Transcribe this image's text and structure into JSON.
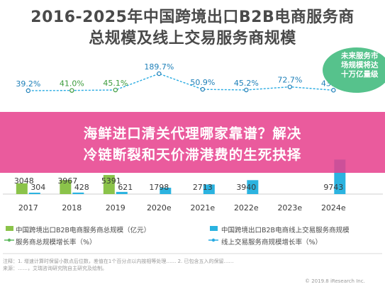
{
  "title_line1": "2016-2025年中国跨境出口B2B电商服务商",
  "title_line2": "总规模及线上交易服务商规模",
  "callout": [
    "未来服务市",
    "场规模将达",
    "十万亿量级"
  ],
  "banner_line1": "海鲜进口清关代理哪家靠谱？解决",
  "banner_line2": "冷链断裂和天价滞港费的生死抉择",
  "legend": {
    "total_scale": "中国跨境出口B2B电商服务商总规模（亿元）",
    "online_scale": "中国跨境出口B2B电商线上交易服务商规模",
    "total_growth": "服务商总规模增长率（%）",
    "online_growth": "线上交易服务商规模增长率（%）"
  },
  "footnote": [
    "注释：1. 增速计算时保留小数点后位数，差值在1个百分点以内按相等处理…… 2. 已包含五入的保留……",
    "来源：……，艾瑞咨询研究院自主研究及绘制。"
  ],
  "source_tag": "© 2019.8 iResearch Inc.",
  "colors": {
    "total_bar": "#8bc34a",
    "online_bar": "#2bb3e0",
    "total_line": "#5cb85c",
    "online_line": "#29abe2",
    "banner": "#e6408d",
    "callout": "#56c28c"
  },
  "chart_data": {
    "type": "bar",
    "categories": [
      "2017",
      "2018",
      "2019",
      "2020e",
      "2021e",
      "2022e",
      "2023e",
      "2024e"
    ],
    "series": [
      {
        "name": "中国跨境出口B2B电商服务商总规模（亿元）",
        "values": [
          3048,
          3967,
          5391,
          null,
          null,
          null,
          null,
          null
        ],
        "labels": [
          "3048",
          "3967",
          "5391",
          "",
          "",
          "",
          "",
          ""
        ]
      },
      {
        "name": "中国跨境出口B2B电商线上交易服务商规模",
        "values": [
          304,
          428,
          621,
          1798,
          2713,
          3940,
          null,
          9743
        ],
        "labels": [
          "304",
          "428",
          "621",
          "1798",
          "2713",
          "3940",
          "",
          "9743"
        ]
      },
      {
        "name": "服务商总规模增长率（%）",
        "values": [
          null,
          41.0,
          45.1,
          null,
          null,
          null,
          null,
          null
        ],
        "labels": [
          "",
          "41.0%",
          "45.1%",
          "",
          "",
          "",
          "",
          ""
        ]
      },
      {
        "name": "线上交易服务商规模增长率（%）",
        "values": [
          39.2,
          null,
          null,
          189.7,
          50.9,
          45.2,
          72.7,
          43.2
        ],
        "labels": [
          "39.2%",
          "",
          "",
          "189.7%",
          "50.9%",
          "45.2%",
          "72.7%",
          "43.2%"
        ]
      }
    ]
  }
}
